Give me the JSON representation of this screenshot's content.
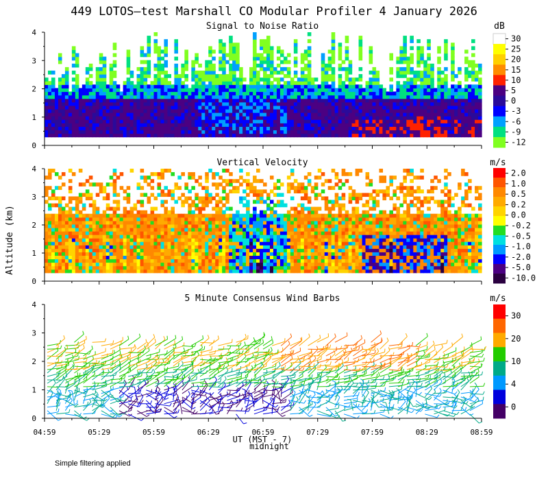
{
  "title": "449 LOTOS—test Marshall CO Modular Profiler  4 January 2026",
  "footer_note": "Simple filtering applied",
  "chart_data": [
    {
      "type": "heatmap",
      "title": "Signal to Noise Ratio",
      "ylabel": "Altitude (km)",
      "ylim": [
        0,
        4
      ],
      "yticks": [
        "0",
        "1",
        "2",
        "3",
        "4"
      ],
      "xlabel": "UT  (MST - 7)",
      "colorbar_unit": "dB",
      "colorbar_labels": [
        "30",
        "25",
        "20",
        "15",
        "10",
        "5",
        "0",
        "-3",
        "-6",
        "-9",
        "-12"
      ],
      "colorbar_colors": [
        "#ffffff",
        "#ffff00",
        "#ffd000",
        "#ff8c00",
        "#ff2200",
        "#4b0082",
        "#2a0a9a",
        "#0000ff",
        "#00a0ff",
        "#00e080",
        "#80ff20"
      ]
    },
    {
      "type": "heatmap",
      "title": "Vertical Velocity",
      "ylabel": "Altitude (km)",
      "ylim": [
        0,
        4
      ],
      "yticks": [
        "0",
        "1",
        "2",
        "3",
        "4"
      ],
      "colorbar_unit": "m/s",
      "colorbar_labels": [
        "2.0",
        "1.0",
        "0.5",
        "0.2",
        "0.0",
        "-0.2",
        "-0.5",
        "-1.0",
        "-2.0",
        "-5.0",
        "-10.0"
      ],
      "colorbar_colors": [
        "#ff0000",
        "#ff5500",
        "#ff8800",
        "#ffaa00",
        "#ffd400",
        "#ffff00",
        "#22dd22",
        "#00e0e0",
        "#0099ff",
        "#0000ff",
        "#4b0082",
        "#2a0040"
      ]
    },
    {
      "type": "scatter",
      "title": "5 Minute Consensus Wind Barbs",
      "ylabel": "Altitude (km)",
      "ylim": [
        0,
        4
      ],
      "yticks": [
        "0",
        "1",
        "2",
        "3",
        "4"
      ],
      "x_tick_labels": [
        "04:59",
        "05:29",
        "05:59",
        "06:29",
        "06:59",
        "07:29",
        "07:59",
        "08:29",
        "08:59"
      ],
      "x_sublabel": "midnight",
      "colorbar_unit": "m/s",
      "colorbar_labels": [
        "30",
        "20",
        "10",
        "4",
        "0"
      ],
      "colorbar_colors": [
        "#ff0000",
        "#ff6600",
        "#ffaa00",
        "#22cc00",
        "#00aa88",
        "#0099ff",
        "#0000dd",
        "#440066"
      ]
    }
  ]
}
